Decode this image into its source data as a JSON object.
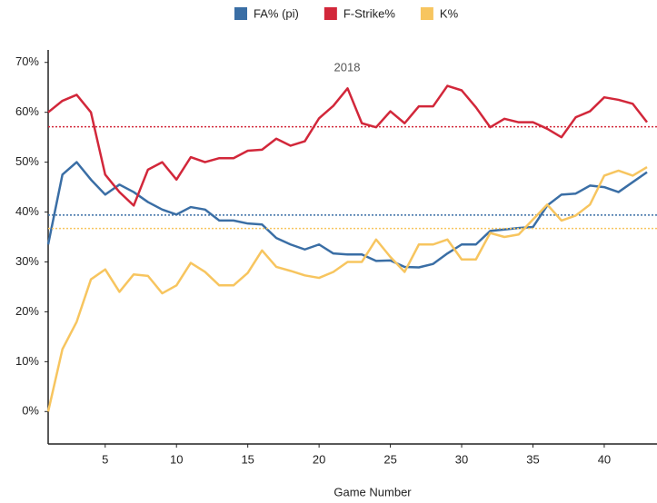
{
  "chart_data": {
    "type": "line",
    "title": "2018",
    "x_label": "Game Number",
    "x": [
      1,
      2,
      3,
      4,
      5,
      6,
      7,
      8,
      9,
      10,
      11,
      12,
      13,
      14,
      15,
      16,
      17,
      18,
      19,
      20,
      21,
      22,
      23,
      24,
      25,
      26,
      27,
      28,
      29,
      30,
      31,
      32,
      33,
      34,
      35,
      36,
      37,
      38,
      39,
      40,
      41,
      42,
      43
    ],
    "series": [
      {
        "name": "FA% (pi)",
        "color": "#3a6ea5",
        "average": 39.4,
        "values": [
          33.5,
          47.5,
          50,
          46.5,
          43.5,
          45.5,
          44,
          42,
          40.5,
          39.5,
          41,
          40.5,
          38.3,
          38.3,
          37.7,
          37.5,
          34.8,
          33.5,
          32.5,
          33.5,
          31.7,
          31.5,
          31.5,
          30.2,
          30.3,
          29,
          28.9,
          29.6,
          31.7,
          33.5,
          33.5,
          36.2,
          36.5,
          36.8,
          37,
          41.3,
          43.5,
          43.7,
          45.3,
          45,
          44,
          46,
          48
        ]
      },
      {
        "name": "F-Strike%",
        "color": "#d2273a",
        "average": 57.1,
        "values": [
          60,
          62.3,
          63.5,
          60,
          47.5,
          44,
          41.3,
          48.5,
          50,
          46.5,
          51,
          50,
          50.8,
          50.8,
          52.3,
          52.5,
          54.7,
          53.3,
          54.2,
          58.8,
          61.3,
          64.8,
          57.8,
          57,
          60.2,
          57.8,
          61.2,
          61.2,
          65.3,
          64.4,
          61,
          57,
          58.7,
          58,
          58,
          56.7,
          55,
          59,
          60.2,
          63,
          62.5,
          61.7,
          58
        ]
      },
      {
        "name": "K%",
        "color": "#f7c55f",
        "average": 36.7,
        "values": [
          0,
          12.5,
          18,
          26.5,
          28.5,
          24,
          27.5,
          27.2,
          23.7,
          25.3,
          29.8,
          28,
          25.3,
          25.3,
          27.8,
          32.3,
          29,
          28.2,
          27.3,
          26.8,
          28,
          30,
          30,
          34.5,
          31,
          28,
          33.5,
          33.5,
          34.5,
          30.5,
          30.5,
          35.8,
          35,
          35.5,
          38.5,
          41.5,
          38.3,
          39.3,
          41.5,
          47.3,
          48.3,
          47.3,
          49
        ]
      }
    ],
    "xlim": [
      1,
      43.7
    ],
    "xticks": [
      5,
      10,
      15,
      20,
      25,
      30,
      35,
      40
    ],
    "ylim": [
      -6.5,
      72.5
    ],
    "yticks": [
      {
        "value": 0,
        "label": "0%"
      },
      {
        "value": 10,
        "label": "10%"
      },
      {
        "value": 20,
        "label": "20%"
      },
      {
        "value": 30,
        "label": "30%"
      },
      {
        "value": 40,
        "label": "40%"
      },
      {
        "value": 50,
        "label": "50%"
      },
      {
        "value": 60,
        "label": "60%"
      },
      {
        "value": 70,
        "label": "70%"
      }
    ],
    "legend": "top"
  }
}
